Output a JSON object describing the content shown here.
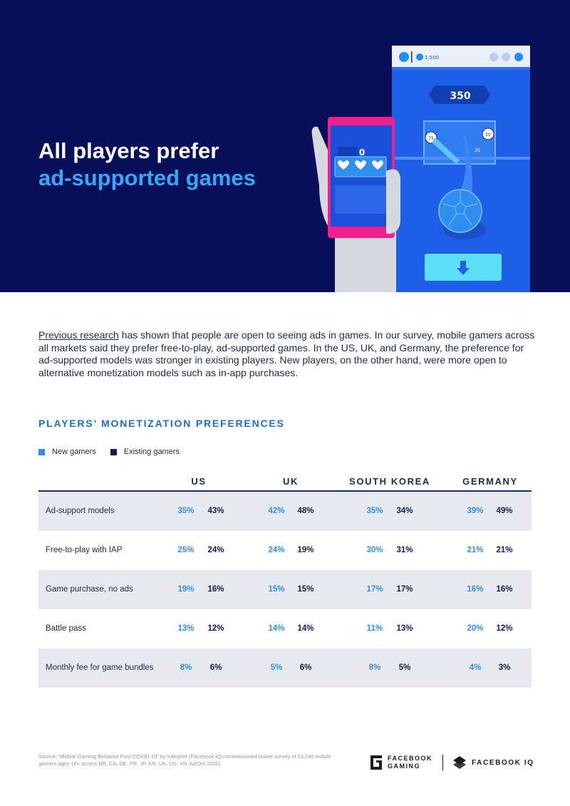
{
  "hero": {
    "title_line1": "All players prefer",
    "title_line2": "ad-supported games",
    "game": {
      "coins": "1,500",
      "score_big": "350",
      "score_phone": "0",
      "targets": [
        "75",
        "50",
        "25"
      ]
    }
  },
  "intro": {
    "link_text": "Previous research",
    "text": " has shown that people are open to seeing ads in games. In our survey, mobile gamers across all markets said they prefer free-to-play, ad-supported games. In the US, UK, and Germany, the preference for ad-supported models was stronger in existing players. New players, on the other hand, were more open to alternative monetization models such as in-app purchases."
  },
  "section_title": "PLAYERS’ MONETIZATION PREFERENCES",
  "legend": [
    {
      "label": "New gamers",
      "color": "#2f8ef0"
    },
    {
      "label": "Existing gamers",
      "color": "#141d4a"
    }
  ],
  "table": {
    "markets": [
      "US",
      "UK",
      "SOUTH KOREA",
      "GERMANY"
    ],
    "rows": [
      {
        "label": "Ad-support models",
        "values": [
          [
            "35%",
            "43%"
          ],
          [
            "42%",
            "48%"
          ],
          [
            "35%",
            "34%"
          ],
          [
            "39%",
            "49%"
          ]
        ]
      },
      {
        "label": "Free-to-play with IAP",
        "values": [
          [
            "25%",
            "24%"
          ],
          [
            "24%",
            "19%"
          ],
          [
            "30%",
            "31%"
          ],
          [
            "21%",
            "21%"
          ]
        ]
      },
      {
        "label": "Game purchase, no ads",
        "values": [
          [
            "19%",
            "16%"
          ],
          [
            "15%",
            "15%"
          ],
          [
            "17%",
            "17%"
          ],
          [
            "16%",
            "16%"
          ]
        ]
      },
      {
        "label": "Battle pass",
        "values": [
          [
            "13%",
            "12%"
          ],
          [
            "14%",
            "14%"
          ],
          [
            "11%",
            "13%"
          ],
          [
            "20%",
            "12%"
          ]
        ]
      },
      {
        "label": "Monthly fee for game bundles",
        "values": [
          [
            "8%",
            "6%"
          ],
          [
            "5%",
            "6%"
          ],
          [
            "8%",
            "5%"
          ],
          [
            "4%",
            "3%"
          ]
        ]
      }
    ]
  },
  "source": "Source: “Mobile Gaming Behavior Post COVID-19” by Interpret (Facebook IQ-commissioned online survey of 13,246 mobile gamers ages 18+ across BR, CA, DE, FR, JP, KR, UK, US, VN Jul/Oct 2020)",
  "logos": {
    "gaming_line1": "FACEBOOK",
    "gaming_line2": "GAMING",
    "iq": "FACEBOOK IQ"
  }
}
